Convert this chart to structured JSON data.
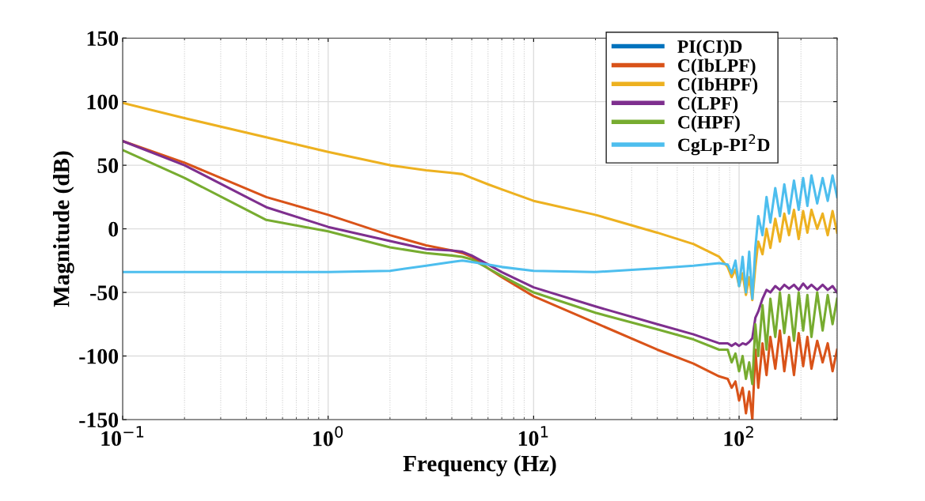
{
  "chart_data": {
    "type": "line",
    "xlabel": "Frequency (Hz)",
    "ylabel": "Magnitude (dB)",
    "log": "x",
    "grid": true,
    "legend": "top right",
    "line_style": "solid",
    "marker": "none",
    "xlim": [
      0.1,
      300
    ],
    "xticks": [
      {
        "value": 0.1,
        "label": "10$^{−1}$"
      },
      {
        "value": 1,
        "label": "10$^{0}$"
      },
      {
        "value": 10,
        "label": "10$^{1}$"
      },
      {
        "value": 100,
        "label": "10$^{2}$"
      }
    ],
    "ylim": [
      -150,
      150
    ],
    "yticks": [
      -150,
      -100,
      -50,
      0,
      50,
      100,
      150
    ],
    "x": [
      0.1,
      0.2,
      0.5,
      1,
      2,
      3,
      4,
      4.5,
      5,
      6,
      7,
      10,
      20,
      40,
      60,
      80,
      88,
      92,
      96,
      100,
      104,
      108,
      112,
      116,
      120,
      124,
      130,
      136,
      142,
      150,
      158,
      166,
      175,
      185,
      195,
      205,
      215,
      225,
      240,
      255,
      270,
      285,
      300
    ],
    "series": [
      {
        "name": "PI(CI)D",
        "color": "#0072bd",
        "values": [
          null,
          null,
          null,
          null,
          null,
          null,
          null,
          null,
          null,
          null,
          null,
          null,
          null,
          null,
          null,
          null,
          null,
          null,
          null,
          null,
          null,
          null,
          null,
          null,
          null,
          null,
          null,
          null,
          null,
          null,
          null,
          null,
          null,
          null,
          null,
          null,
          null,
          null,
          null,
          null,
          null,
          null,
          null
        ]
      },
      {
        "name": "C(IbLPF)",
        "color": "#d95319",
        "values": [
          69,
          52,
          25,
          11,
          -5,
          -13,
          -17,
          -19,
          -22,
          -31,
          -38,
          -53,
          -74,
          -95,
          -106,
          -116,
          -118,
          -125,
          -120,
          -135,
          -125,
          -145,
          -128,
          -150,
          -95,
          -125,
          -90,
          -115,
          -85,
          -110,
          -80,
          -112,
          -85,
          -115,
          -82,
          -108,
          -85,
          -110,
          -88,
          -105,
          -90,
          -112,
          -95
        ]
      },
      {
        "name": "C(IbHPF)",
        "color": "#edb120",
        "values": [
          99,
          87,
          72,
          60.5,
          50,
          46,
          44,
          43,
          40,
          35,
          31,
          22,
          11,
          -3,
          -12,
          -22,
          -30,
          -38,
          -32,
          -45,
          -35,
          -52,
          -38,
          -56,
          -30,
          -10,
          -20,
          0,
          -15,
          8,
          -10,
          12,
          -5,
          15,
          -8,
          14,
          -3,
          15,
          0,
          12,
          -5,
          14,
          -3
        ]
      },
      {
        "name": "C(LPF)",
        "color": "#7e2f8e",
        "values": [
          69,
          50,
          17,
          1.5,
          -9.6,
          -16,
          -17,
          -18,
          -21,
          -28,
          -34,
          -46,
          -61,
          -75,
          -83,
          -90,
          -90,
          -92,
          -90,
          -92,
          -90,
          -91,
          -89,
          -86,
          -70,
          -65,
          -55,
          -48,
          -50,
          -45,
          -48,
          -44,
          -47,
          -44,
          -48,
          -43,
          -47,
          -44,
          -48,
          -44,
          -48,
          -45,
          -50
        ]
      },
      {
        "name": "C(HPF)",
        "color": "#77ac30",
        "values": [
          62,
          40,
          7,
          -2,
          -14.6,
          -19,
          -21,
          -22,
          -24,
          -31,
          -37,
          -50,
          -66,
          -79,
          -87,
          -95,
          -95,
          -105,
          -98,
          -112,
          -100,
          -118,
          -105,
          -122,
          -75,
          -100,
          -60,
          -95,
          -55,
          -85,
          -50,
          -82,
          -52,
          -88,
          -50,
          -80,
          -52,
          -85,
          -50,
          -80,
          -52,
          -75,
          -55
        ]
      },
      {
        "name": "CgLp-PI$^{2}$D",
        "color": "#4dbeee",
        "values": [
          -34,
          -34,
          -34,
          -34,
          -33,
          -29,
          -26,
          -25,
          -26,
          -28,
          -30,
          -33,
          -34,
          -31,
          -29,
          -27,
          -28,
          -35,
          -25,
          -45,
          -22,
          -50,
          -18,
          -55,
          -15,
          10,
          -5,
          25,
          5,
          32,
          10,
          35,
          12,
          38,
          15,
          40,
          18,
          42,
          20,
          40,
          22,
          42,
          25
        ]
      }
    ]
  }
}
